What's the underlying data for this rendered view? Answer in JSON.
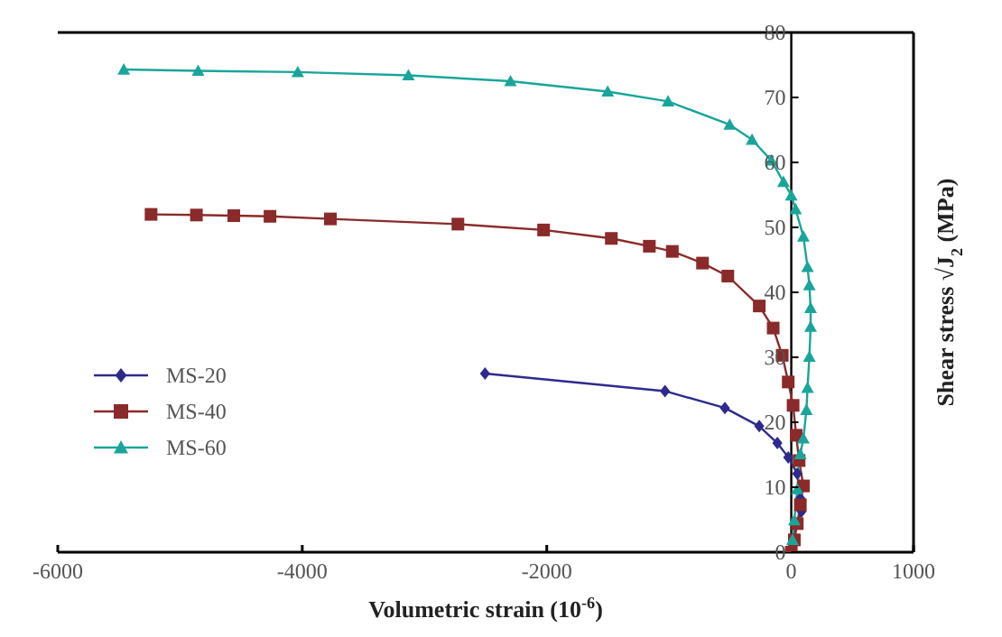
{
  "chart_data": {
    "type": "line",
    "xlabel": "Volumetric strain  (10$^{-6}$)",
    "ylabel": "Shear stress  √J$_{2}$ (MPa)",
    "xlim": [
      -6000,
      1000
    ],
    "xticks": [
      -6000,
      -4000,
      -2000,
      0,
      1000
    ],
    "ylim": [
      0,
      80
    ],
    "yticks": [
      0,
      10,
      20,
      30,
      40,
      50,
      60,
      70,
      80
    ],
    "grid": false,
    "legend": "bottom left",
    "line_style": "solid",
    "series": [
      {
        "name": "MS-20",
        "color": "#2e2a8c",
        "marker": "diamond",
        "x": [
          -2505,
          -1033,
          -543,
          -262,
          -114,
          -25,
          49,
          74,
          84,
          49,
          15,
          0
        ],
        "values": [
          27.5,
          24.8,
          22.2,
          19.4,
          16.8,
          14.6,
          12.1,
          8.3,
          6.3,
          4.4,
          1.9,
          0
        ]
      },
      {
        "name": "MS-40",
        "color": "#8b2a2a",
        "marker": "square",
        "x": [
          -5237,
          -4866,
          -4560,
          -4264,
          -3770,
          -2727,
          -2026,
          -1472,
          -1161,
          -973,
          -726,
          -519,
          -262,
          -148,
          -74,
          -25,
          15,
          40,
          64,
          99,
          74,
          49,
          25,
          0
        ],
        "values": [
          52.0,
          51.9,
          51.8,
          51.7,
          51.3,
          50.5,
          49.6,
          48.3,
          47.1,
          46.3,
          44.5,
          42.5,
          37.9,
          34.5,
          30.3,
          26.2,
          22.6,
          18.0,
          14.1,
          10.2,
          7.3,
          4.4,
          1.9,
          0
        ]
      },
      {
        "name": "MS-60",
        "color": "#1aa59a",
        "marker": "triangle",
        "x": [
          -5460,
          -4852,
          -4037,
          -3132,
          -2297,
          -1502,
          -1008,
          -504,
          -321,
          -163,
          -64,
          0,
          35,
          99,
          133,
          148,
          158,
          158,
          148,
          133,
          124,
          99,
          74,
          49,
          25,
          10
        ],
        "values": [
          74.3,
          74.1,
          73.9,
          73.4,
          72.5,
          70.9,
          69.4,
          65.8,
          63.5,
          60.3,
          57.0,
          54.9,
          52.8,
          48.6,
          43.9,
          41.1,
          37.6,
          34.7,
          30.1,
          25.3,
          21.9,
          17.5,
          15.1,
          9.7,
          4.9,
          1.9
        ]
      }
    ]
  }
}
